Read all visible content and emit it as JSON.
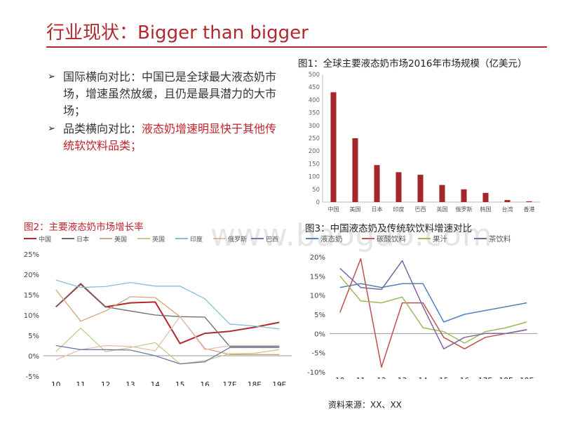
{
  "title": "行业现状：Bigger than bigger",
  "bullets": [
    {
      "segments": [
        {
          "text": "国际横向对比：中国已是全球最大液态奶市场，增速虽然放缓，且仍是最具潜力的大市场；",
          "red": false
        }
      ]
    },
    {
      "segments": [
        {
          "text": "品类横向对比：",
          "red": false
        },
        {
          "text": "液态奶增速明显快于其他传统软饮料品类；",
          "red": true
        }
      ]
    }
  ],
  "figure1": {
    "caption": "图1：全球主要液态奶市场2016年市场规模（亿美元）"
  },
  "figure2": {
    "caption": "图2：主要液态奶市场增长率"
  },
  "figure3": {
    "caption": "图3：中国液态奶及传统软饮料增速对比"
  },
  "watermark": "www.baogao.com",
  "source": "资料来源：XX、XX",
  "colors": {
    "accent": "#b3272e",
    "bar": "#a4272c"
  },
  "chart_data": [
    {
      "type": "bar",
      "categories": [
        "中国",
        "美国",
        "日本",
        "印度",
        "巴西",
        "英国",
        "俄罗斯",
        "韩国",
        "台湾",
        "香港"
      ],
      "values": [
        430,
        250,
        145,
        117,
        107,
        67,
        50,
        36,
        8,
        3
      ],
      "ylim": [
        0,
        500
      ],
      "yticks": [
        0,
        50,
        100,
        150,
        200,
        250,
        300,
        350,
        400,
        450,
        500
      ],
      "grid": false
    },
    {
      "type": "line",
      "x": [
        "10",
        "11",
        "12",
        "13",
        "14",
        "15",
        "16",
        "17E",
        "18E",
        "19E"
      ],
      "ylim": [
        -5,
        25
      ],
      "yticks": [
        "-5%",
        "0%",
        "5%",
        "10%",
        "15%",
        "20%",
        "25%"
      ],
      "legend_position": "top",
      "series": [
        {
          "name": "中国",
          "color": "#b3272e",
          "width": 2,
          "values": [
            12,
            17.6,
            12,
            13,
            13.2,
            3,
            5.5,
            6,
            7,
            8.2
          ]
        },
        {
          "name": "日本",
          "color": "#6b6b6b",
          "width": 1.3,
          "values": [
            12,
            17.8,
            12,
            11,
            10,
            9.6,
            9.5,
            2.3,
            2.3,
            2.3
          ]
        },
        {
          "name": "美国",
          "color": "#d6a37c",
          "width": 1.3,
          "values": [
            16.2,
            8.5,
            11,
            14.5,
            14.3,
            9.6,
            1.8,
            0.3,
            0.3,
            0.3
          ]
        },
        {
          "name": "英国",
          "color": "#c2cc8b",
          "width": 1.3,
          "values": [
            1,
            6.8,
            1,
            2,
            3.2,
            -2,
            -1.2,
            0.5,
            0.6,
            1.5
          ]
        },
        {
          "name": "印度",
          "color": "#85bed8",
          "width": 1.3,
          "values": [
            18.6,
            16.8,
            17,
            18,
            17.1,
            17.1,
            14,
            7.8,
            7.3,
            6.6
          ]
        },
        {
          "name": "俄罗斯",
          "color": "#e6bfb3",
          "width": 1.3,
          "values": [
            -1,
            1.5,
            2.5,
            2.3,
            1.2,
            9.6,
            1.5,
            2.5,
            2.5,
            2.5
          ]
        },
        {
          "name": "巴西",
          "color": "#6d7aa6",
          "width": 1.3,
          "values": [
            2.5,
            1.5,
            1.5,
            1.4,
            0,
            -2,
            -1.5,
            2,
            2,
            2
          ]
        }
      ]
    },
    {
      "type": "line",
      "x": [
        "10",
        "11",
        "12",
        "13",
        "14",
        "15",
        "16",
        "17E",
        "18E",
        "19E"
      ],
      "ylim": [
        -10,
        20
      ],
      "yticks": [
        "-10%",
        "-5%",
        "0%",
        "5%",
        "10%",
        "15%",
        "20%"
      ],
      "legend_position": "top",
      "series": [
        {
          "name": "液态奶",
          "color": "#4f81bd",
          "width": 1.5,
          "values": [
            12,
            13,
            12,
            13,
            13,
            3,
            5,
            6,
            7,
            8
          ]
        },
        {
          "name": "碳酸饮料",
          "color": "#c0504d",
          "width": 1.5,
          "values": [
            5.5,
            19.5,
            -8.8,
            8,
            8,
            -1,
            -4,
            -1,
            0,
            1
          ]
        },
        {
          "name": "果汁",
          "color": "#9bbb59",
          "width": 1.5,
          "values": [
            15,
            8.5,
            8,
            9.5,
            1.5,
            0.5,
            -2.5,
            0.5,
            1.5,
            3
          ]
        },
        {
          "name": "茶饮料",
          "color": "#8064a2",
          "width": 1.5,
          "values": [
            17,
            12,
            11.5,
            19,
            7,
            -4,
            -1,
            0,
            0,
            1
          ]
        }
      ]
    }
  ]
}
